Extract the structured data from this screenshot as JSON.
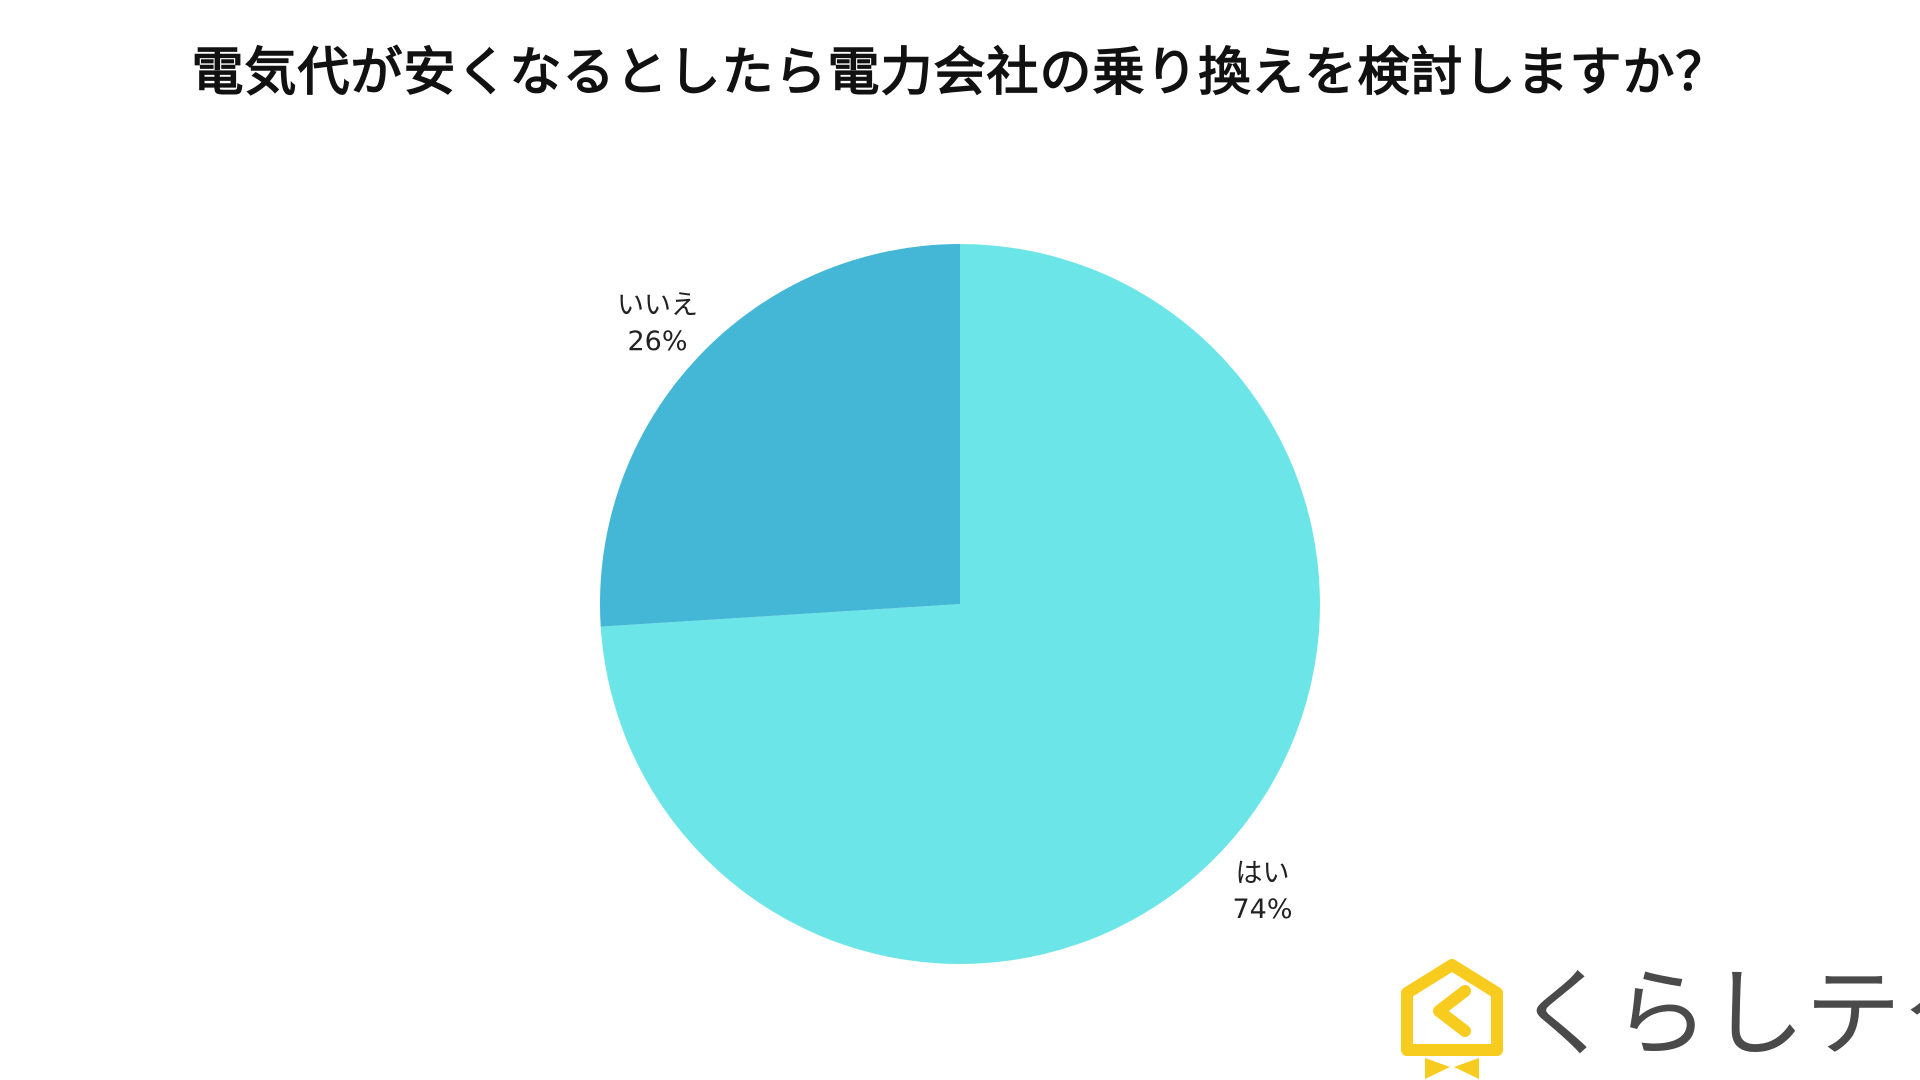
{
  "chart_data": {
    "type": "pie",
    "title": "電気代が安くなるとしたら電力会社の乗り換えを検討しますか？",
    "slices": [
      {
        "label": "はい",
        "value": 74,
        "value_label": "74%",
        "color": "#6ce5e8"
      },
      {
        "label": "いいえ",
        "value": 26,
        "value_label": "26%",
        "color": "#43b7d5"
      }
    ],
    "start": "12 o'clock",
    "direction": "clockwise",
    "legend": "none"
  },
  "logo": {
    "text": "くらしテク",
    "accent_color": "#f7cc1e"
  }
}
